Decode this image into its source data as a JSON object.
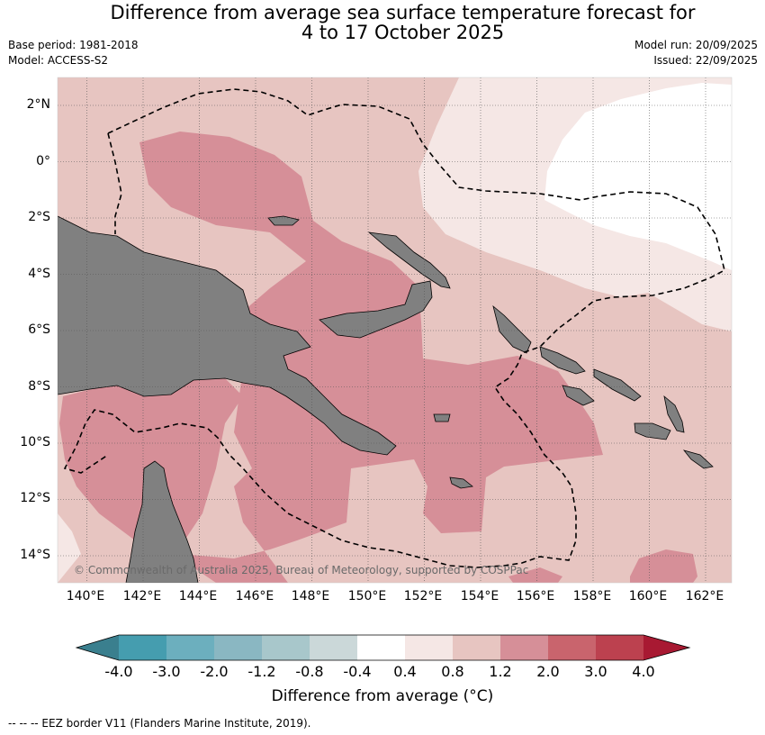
{
  "title": {
    "line1": "Difference from average sea surface temperature forecast for",
    "line2": "4 to 17 October 2025"
  },
  "meta_left": {
    "base_period": "Base period: 1981-2018",
    "model": "Model: ACCESS-S2"
  },
  "meta_right": {
    "model_run": "Model run: 20/09/2025",
    "issued": "Issued: 22/09/2025"
  },
  "lat_labels": [
    "2°N",
    "0°",
    "2°S",
    "4°S",
    "6°S",
    "8°S",
    "10°S",
    "12°S",
    "14°S"
  ],
  "lon_labels": [
    "140°E",
    "142°E",
    "144°E",
    "146°E",
    "148°E",
    "150°E",
    "152°E",
    "154°E",
    "156°E",
    "158°E",
    "160°E",
    "162°E"
  ],
  "copyright": "© Commonwealth of Australia 2025, Bureau of Meteorology, supported by COSPPac",
  "colorbar": {
    "ticks": [
      "-4.0",
      "-3.0",
      "-2.0",
      "-1.2",
      "-0.8",
      "-0.4",
      "0.4",
      "0.8",
      "1.2",
      "2.0",
      "3.0",
      "4.0"
    ],
    "colors": [
      "#459daf",
      "#6cafbe",
      "#8ab7c2",
      "#a8c7cb",
      "#cbd8d9",
      "#ffffff",
      "#f5e7e5",
      "#e7c5c1",
      "#d68f98",
      "#c9646d",
      "#bc414f"
    ],
    "under_color": "#3a7f8e",
    "over_color": "#a81932",
    "title": "Difference from average (°C)"
  },
  "land_color": "#808080",
  "footnote": "-- -- -- EEZ border V11 (Flanders Marine Institute, 2019)."
}
